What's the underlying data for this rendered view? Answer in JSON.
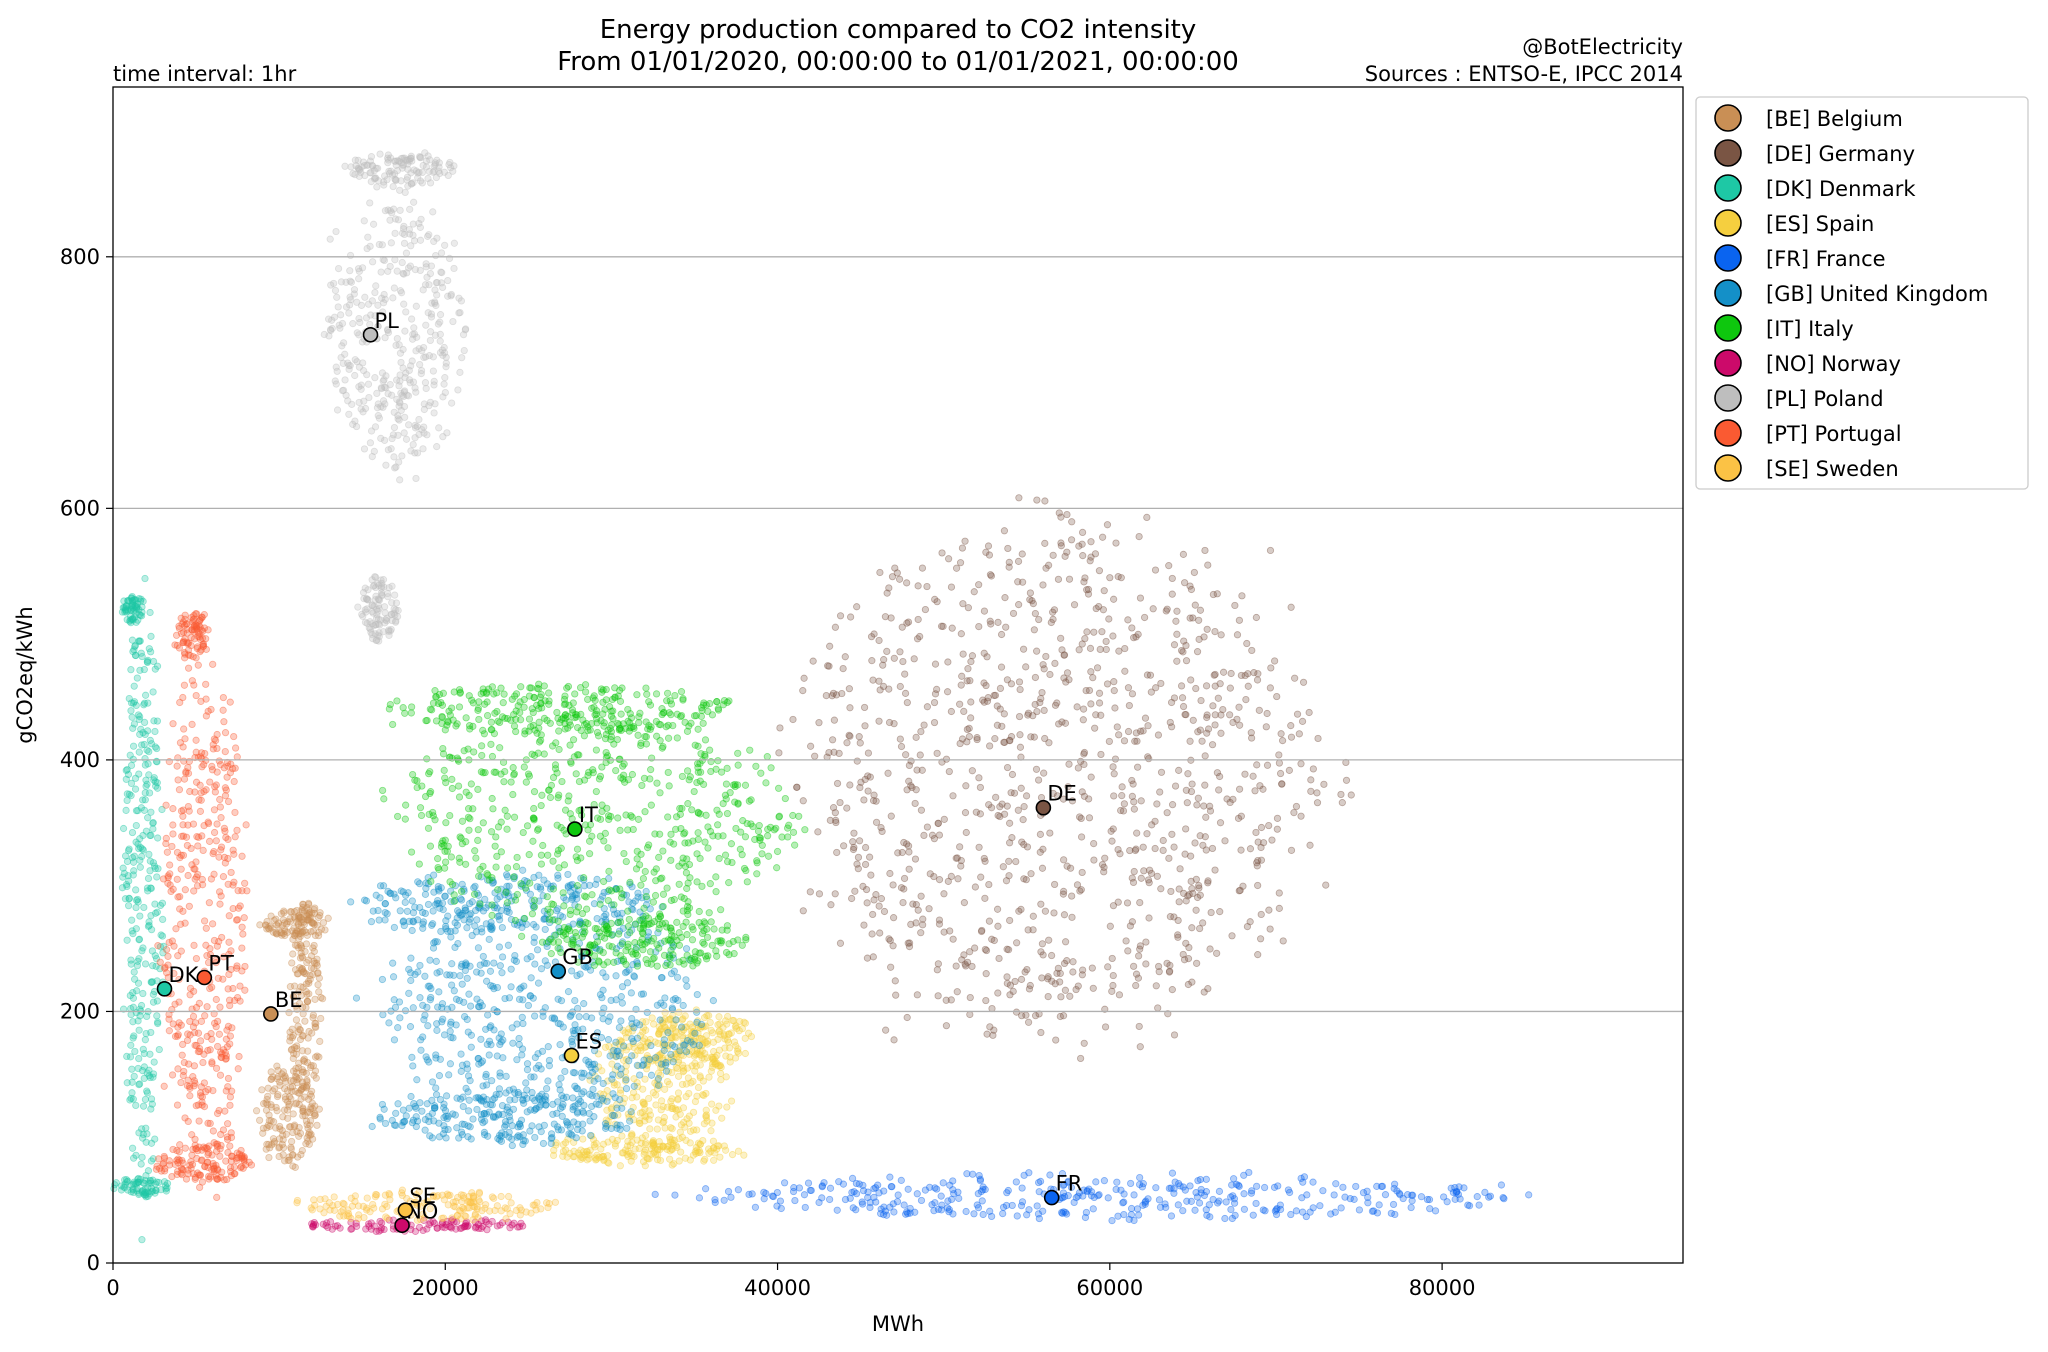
{
  "chart_data": {
    "type": "scatter",
    "title": "Energy production compared to CO2 intensity",
    "subtitle": "From 01/01/2020, 00:00:00 to 01/01/2021, 00:00:00",
    "left_note": "time interval: 1hr",
    "right_note_1": "@BotElectricity",
    "right_note_2": "Sources : ENTSO-E, IPCC 2014",
    "xlabel": "MWh",
    "ylabel": "gCO2eq/kWh",
    "xlim": [
      0,
      94500
    ],
    "ylim": [
      0,
      935
    ],
    "x_ticks": [
      0,
      20000,
      40000,
      60000,
      80000
    ],
    "x_tick_labels": [
      "0",
      "20000",
      "40000",
      "60000",
      "80000"
    ],
    "y_ticks": [
      0,
      200,
      400,
      600,
      800
    ],
    "y_tick_labels": [
      "0",
      "200",
      "400",
      "600",
      "800"
    ],
    "grid": "horizontal",
    "legend_position": "outside-top-right",
    "series": [
      {
        "code": "BE",
        "name": "[BE] Belgium",
        "color": "#c98f55",
        "mean": [
          9500,
          198
        ],
        "cloud": [
          [
            11000,
            270,
            2000,
            12
          ],
          [
            10500,
            120,
            1800,
            40
          ],
          [
            11500,
            200,
            1000,
            90
          ]
        ]
      },
      {
        "code": "DE",
        "name": "[DE] Germany",
        "color": "#7a5544",
        "mean": [
          56000,
          362
        ],
        "cloud": [
          [
            57000,
            385,
            16000,
            200
          ]
        ]
      },
      {
        "code": "DK",
        "name": "[DK] Denmark",
        "color": "#1ec8a5",
        "mean": [
          3100,
          218
        ],
        "cloud": [
          [
            1200,
            520,
            700,
            10
          ],
          [
            1600,
            60,
            1800,
            8
          ],
          [
            1800,
            290,
            1200,
            230
          ]
        ]
      },
      {
        "code": "ES",
        "name": "[ES] Spain",
        "color": "#f5cf3f",
        "mean": [
          27600,
          165
        ],
        "cloud": [
          [
            35000,
            175,
            3500,
            25
          ],
          [
            32000,
            90,
            6000,
            12
          ],
          [
            33000,
            140,
            4000,
            55
          ]
        ]
      },
      {
        "code": "FR",
        "name": "[FR] France",
        "color": "#0a64f0",
        "mean": [
          56500,
          52
        ],
        "cloud": [
          [
            60000,
            53,
            24000,
            18
          ]
        ]
      },
      {
        "code": "GB",
        "name": "[GB] United Kingdom",
        "color": "#1490c8",
        "mean": [
          26800,
          232
        ],
        "cloud": [
          [
            24000,
            285,
            9000,
            25
          ],
          [
            24000,
            115,
            8000,
            20
          ],
          [
            26000,
            200,
            9500,
            80
          ]
        ]
      },
      {
        "code": "IT",
        "name": "[IT] Italy",
        "color": "#0ec70e",
        "mean": [
          27800,
          345
        ],
        "cloud": [
          [
            27000,
            440,
            10000,
            20
          ],
          [
            32000,
            255,
            6000,
            20
          ],
          [
            29000,
            350,
            12000,
            85
          ]
        ]
      },
      {
        "code": "NO",
        "name": "[NO] Norway",
        "color": "#cc0a6a",
        "mean": [
          17400,
          30
        ],
        "cloud": [
          [
            18000,
            30,
            7000,
            5
          ]
        ]
      },
      {
        "code": "PL",
        "name": "[PL] Poland",
        "color": "#bebebe",
        "mean": [
          15500,
          738
        ],
        "cloud": [
          [
            17500,
            870,
            3500,
            12
          ],
          [
            16000,
            520,
            1200,
            25
          ],
          [
            17000,
            740,
            4000,
            110
          ]
        ]
      },
      {
        "code": "PT",
        "name": "[PT] Portugal",
        "color": "#fa5a32",
        "mean": [
          5500,
          227
        ],
        "cloud": [
          [
            4800,
            500,
            1000,
            20
          ],
          [
            5500,
            80,
            3000,
            15
          ],
          [
            5500,
            270,
            2500,
            200
          ]
        ]
      },
      {
        "code": "SE",
        "name": "[SE] Sweden",
        "color": "#fbc245",
        "mean": [
          17600,
          42
        ],
        "cloud": [
          [
            19000,
            45,
            7500,
            12
          ]
        ]
      }
    ]
  }
}
